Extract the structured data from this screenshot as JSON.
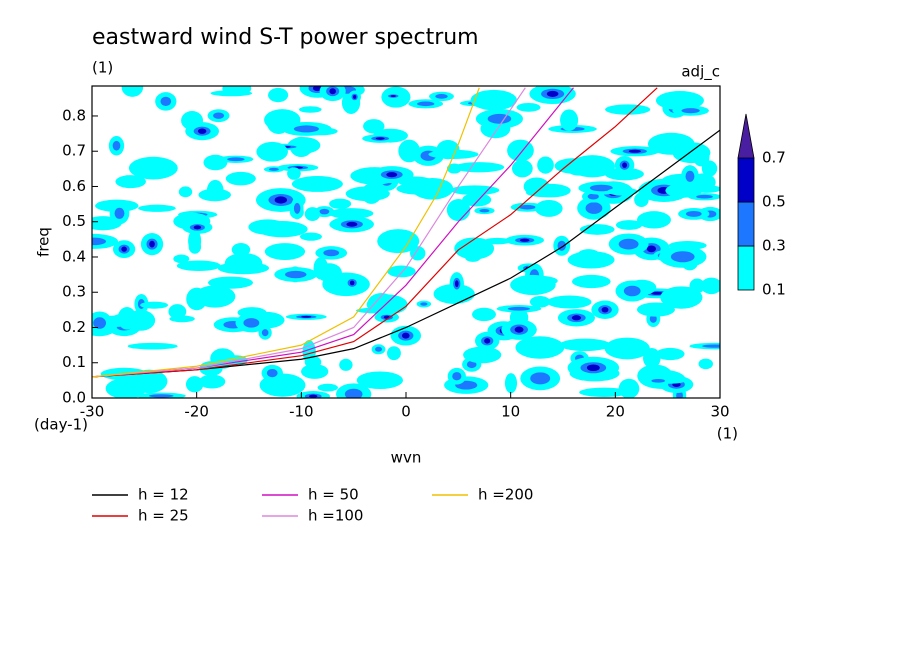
{
  "chart_data": {
    "type": "line",
    "title": "eastward wind S-T power spectrum",
    "subtitle": "(1)",
    "annotation": "adj_c",
    "x_label": "wvn",
    "x_unit": "(1)",
    "y_label": "freq",
    "y_unit": "(day-1)",
    "xlim": [
      -30,
      30
    ],
    "ylim": [
      0,
      0.885
    ],
    "xticks": [
      -30,
      -20,
      -10,
      0,
      10,
      20,
      30
    ],
    "yticks": [
      {
        "value": 0,
        "label": "0.0"
      },
      0.1,
      0.2,
      0.3,
      0.4,
      0.5,
      0.6,
      0.7,
      0.8
    ],
    "series": [
      {
        "name": "h = 12",
        "color": "#000000",
        "x": [
          -30,
          -20,
          -10,
          -5,
          0,
          5,
          10,
          15,
          20,
          25,
          30
        ],
        "values": [
          0.06,
          0.08,
          0.11,
          0.14,
          0.2,
          0.27,
          0.34,
          0.43,
          0.54,
          0.65,
          0.76
        ]
      },
      {
        "name": "h = 25",
        "color": "#e00000",
        "x": [
          -30,
          -20,
          -10,
          -5,
          0,
          5,
          10,
          15,
          20,
          24
        ],
        "values": [
          0.06,
          0.08,
          0.12,
          0.16,
          0.26,
          0.42,
          0.52,
          0.65,
          0.77,
          0.88
        ]
      },
      {
        "name": "h = 50",
        "color": "#d010c0",
        "x": [
          -30,
          -20,
          -10,
          -5,
          0,
          5,
          10,
          16
        ],
        "values": [
          0.06,
          0.085,
          0.13,
          0.18,
          0.32,
          0.5,
          0.66,
          0.88
        ]
      },
      {
        "name": "h =100",
        "color": "#dd88dd",
        "x": [
          -30,
          -20,
          -10,
          -5,
          0,
          5,
          11.4
        ],
        "values": [
          0.06,
          0.085,
          0.14,
          0.2,
          0.37,
          0.6,
          0.88
        ]
      },
      {
        "name": "h =200",
        "color": "#f0c000",
        "x": [
          -30,
          -20,
          -10,
          -5,
          0,
          3,
          5,
          7
        ],
        "values": [
          0.06,
          0.09,
          0.15,
          0.23,
          0.43,
          0.58,
          0.72,
          0.88
        ]
      }
    ],
    "colorbar": {
      "ticks": [
        0.1,
        0.3,
        0.5,
        0.7
      ],
      "colors": [
        "#00ffff",
        "#1e78ff",
        "#0000c8",
        "#4a1ea0"
      ]
    }
  }
}
